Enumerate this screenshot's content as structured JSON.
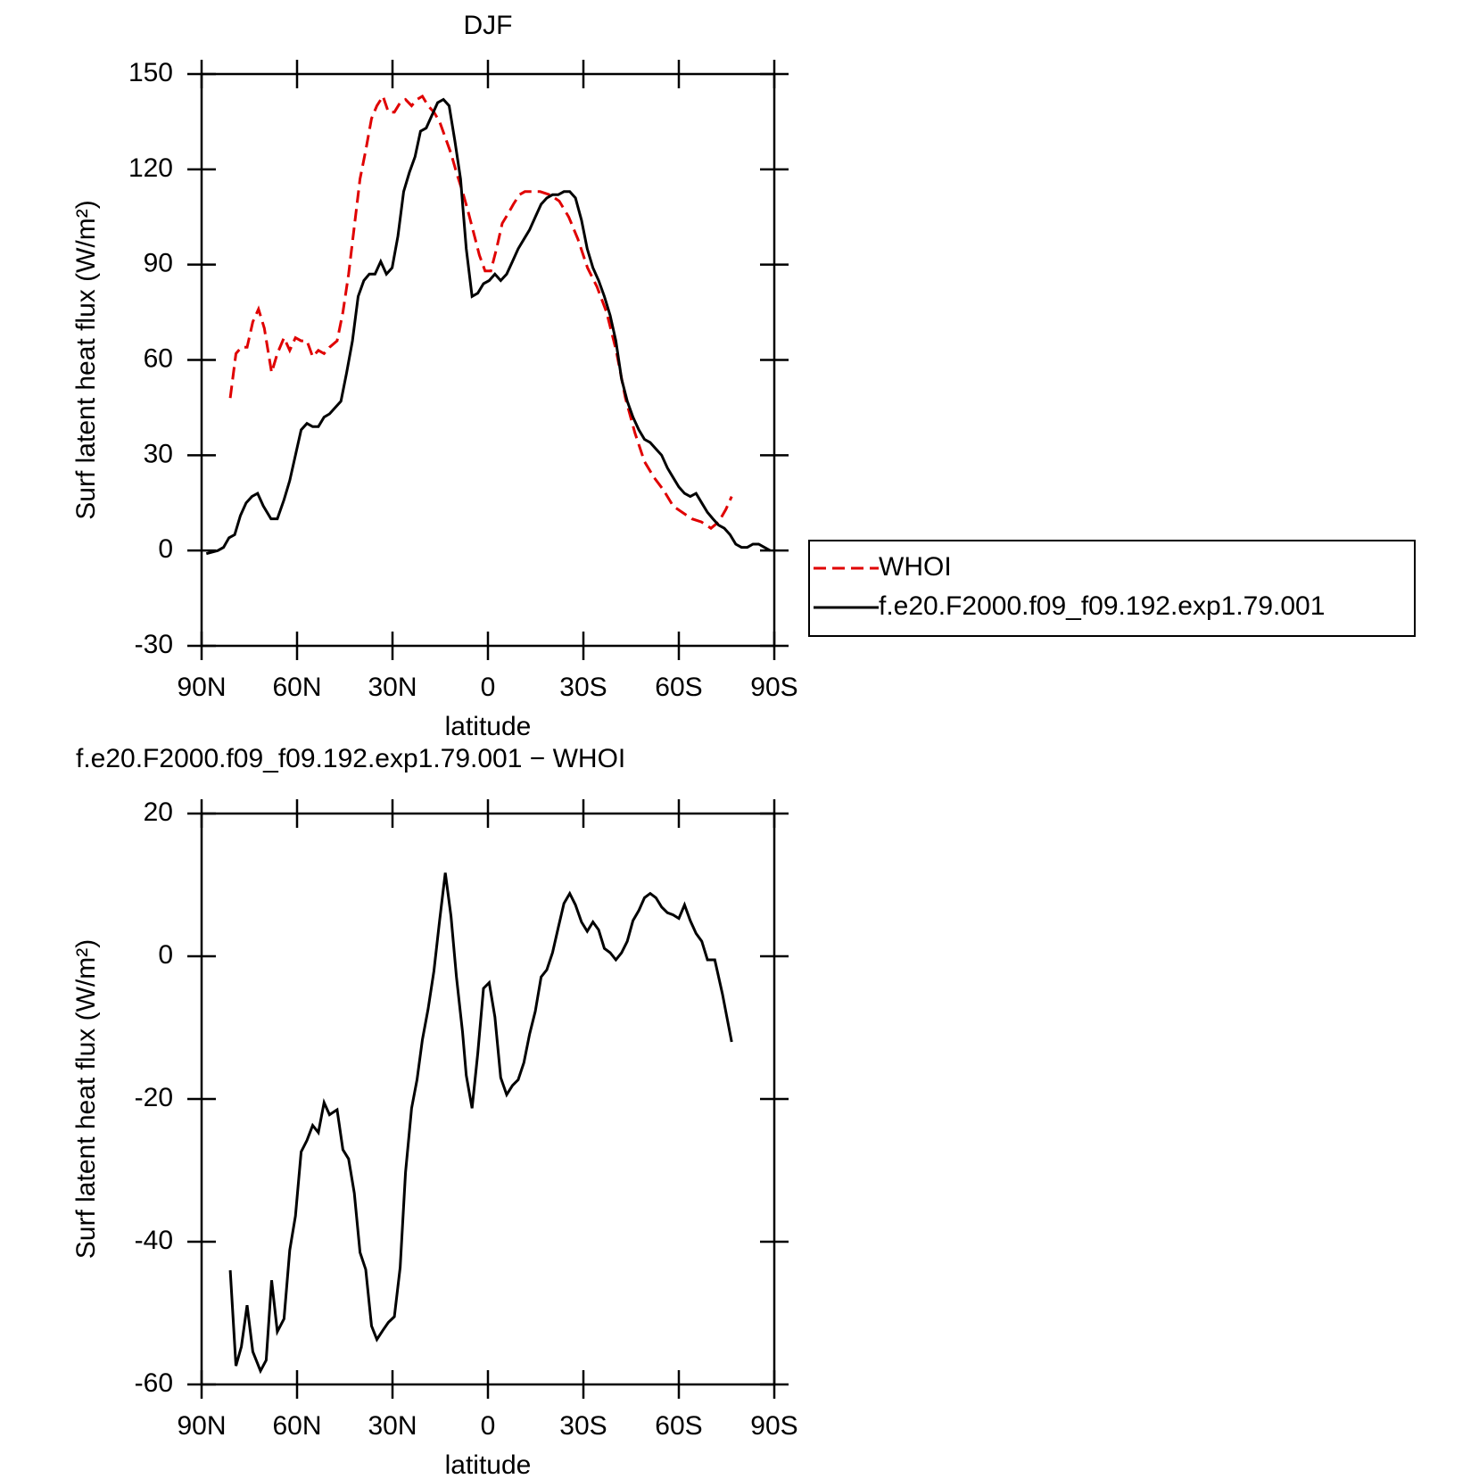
{
  "chart_data": [
    {
      "type": "line",
      "title": "DJF",
      "xlabel": "latitude",
      "ylabel": "Surf latent heat flux (W/m²)",
      "xlim": [
        90,
        -90
      ],
      "xticks": [
        {
          "value": 90,
          "label": "90N"
        },
        {
          "value": 60,
          "label": "60N"
        },
        {
          "value": 30,
          "label": "30N"
        },
        0,
        {
          "value": -30,
          "label": "30S"
        },
        {
          "value": -60,
          "label": "60S"
        },
        {
          "value": -90,
          "label": "90S"
        }
      ],
      "ylim": [
        -30,
        150
      ],
      "yticks": [
        -30,
        0,
        30,
        60,
        90,
        120,
        150
      ],
      "series": [
        {
          "name": "WHOI",
          "color": "#e00000",
          "dash": "dashed",
          "x": [
            81,
            79.2,
            77.5,
            75.7,
            73.9,
            72.1,
            70.3,
            68,
            66.2,
            64.1,
            62.3,
            60.5,
            58.7,
            56.9,
            55.1,
            53.3,
            51.5,
            49.8,
            47.4,
            45.6,
            43.8,
            42,
            40.2,
            38.4,
            36.6,
            34.9,
            33,
            31.3,
            29.4,
            27.6,
            25.9,
            24,
            22.3,
            20.6,
            18.8,
            17,
            15.2,
            13.4,
            11.6,
            9.9,
            8,
            6.3,
            4.5,
            2.7,
            0.9,
            -0.9,
            -2.7,
            -4.5,
            -6.3,
            -8,
            -9.9,
            -11.6,
            -13.4,
            -16.4,
            -19.4,
            -22.4,
            -25.4,
            -28.3,
            -31.3,
            -34.3,
            -37.3,
            -40.3,
            -43.2,
            -46.2,
            -49.2,
            -52.2,
            -55.2,
            -58.2,
            -61.1,
            -64.1,
            -67.1,
            -70.1,
            -72.5,
            -74.8,
            -76.6
          ],
          "values": [
            48,
            62,
            64,
            64,
            72,
            76,
            70,
            56,
            62,
            67,
            63,
            67,
            66,
            66,
            61,
            63,
            62,
            64,
            66,
            75,
            87,
            102,
            117,
            126,
            136,
            140,
            143,
            138,
            138,
            141,
            142,
            140,
            142,
            143,
            140,
            138,
            135,
            130,
            125,
            119,
            113,
            107,
            100,
            93,
            88,
            88,
            95,
            103,
            106,
            109,
            112,
            113,
            113,
            113,
            112,
            110,
            105,
            98,
            89,
            83,
            75,
            63,
            48,
            37,
            28,
            23,
            19,
            14,
            12,
            10,
            9,
            7,
            9,
            13,
            17
          ]
        },
        {
          "name": "f.e20.F2000.f09_f09.192.exp1.79.001",
          "color": "#000000",
          "dash": "solid",
          "x": [
            88.5,
            84.9,
            83.1,
            81.4,
            79.6,
            77.8,
            76,
            74.2,
            72.4,
            70.6,
            68.2,
            66.2,
            64.1,
            62.3,
            60.5,
            58.7,
            56.9,
            55.1,
            53.3,
            51.5,
            49.8,
            48,
            46.2,
            44.4,
            42.6,
            40.8,
            39,
            37.3,
            35.5,
            33.7,
            31.9,
            30.1,
            28.3,
            26.5,
            24.7,
            22.9,
            21.2,
            19.4,
            17.6,
            15.8,
            14,
            12.2,
            10.4,
            8.6,
            6.8,
            5,
            3.2,
            1.4,
            -0.4,
            -2.2,
            -4,
            -5.9,
            -7.7,
            -9.5,
            -11.3,
            -13.1,
            -14.9,
            -16.7,
            -18.5,
            -20.3,
            -22.1,
            -23.9,
            -25.7,
            -27.5,
            -29.4,
            -31.2,
            -33,
            -34.8,
            -36.6,
            -38.4,
            -40.2,
            -42,
            -43.8,
            -45.6,
            -47.4,
            -49.2,
            -51,
            -52.8,
            -54.6,
            -56.4,
            -58.2,
            -60,
            -61.8,
            -63.6,
            -65.4,
            -67.2,
            -69,
            -70.7,
            -72.5,
            -74.3,
            -76.1,
            -77.9,
            -79.7,
            -81.5,
            -83.3,
            -85.1,
            -86.9,
            -88.7
          ],
          "values": [
            -1,
            0,
            1,
            4,
            5,
            11,
            15,
            17,
            18,
            14,
            10,
            10,
            16,
            22,
            30,
            38,
            40,
            39,
            39,
            42,
            43,
            45,
            47,
            56,
            66,
            80,
            85,
            87,
            87,
            91,
            87,
            89,
            99,
            113,
            119,
            124,
            132,
            133,
            137,
            141,
            142,
            140,
            129,
            117,
            95,
            80,
            81,
            84,
            85,
            87,
            85,
            87,
            91,
            95,
            98,
            101,
            105,
            109,
            111,
            112,
            112,
            113,
            113,
            111,
            104,
            95,
            89,
            85,
            80,
            74,
            66,
            54,
            47,
            42,
            38,
            35,
            34,
            32,
            30,
            26,
            23,
            20,
            18,
            17,
            18,
            15,
            12,
            10,
            8,
            7,
            5,
            2,
            1,
            1,
            2,
            2,
            1,
            0
          ]
        }
      ]
    },
    {
      "type": "line",
      "title": "f.e20.F2000.f09_f09.192.exp1.79.001 − WHOI",
      "xlabel": "latitude",
      "ylabel": "Surf latent heat flux (W/m²)",
      "xlim": [
        90,
        -90
      ],
      "xticks": [
        {
          "value": 90,
          "label": "90N"
        },
        {
          "value": 60,
          "label": "60N"
        },
        {
          "value": 30,
          "label": "30N"
        },
        0,
        {
          "value": -30,
          "label": "30S"
        },
        {
          "value": -60,
          "label": "60S"
        },
        {
          "value": -90,
          "label": "90S"
        }
      ],
      "ylim": [
        -60,
        20
      ],
      "yticks": [
        -60,
        -40,
        -20,
        0,
        20
      ],
      "series": [
        {
          "color": "#000000",
          "dash": "solid",
          "x": [
            81,
            79.2,
            77.5,
            75.7,
            73.9,
            71.5,
            69.7,
            68,
            66.2,
            64.1,
            62.3,
            60.5,
            58.7,
            56.9,
            55.1,
            53.3,
            51.5,
            49.8,
            47.4,
            45.6,
            43.8,
            42,
            40.2,
            38.4,
            36.6,
            34.9,
            33,
            31.3,
            29.4,
            27.6,
            25.9,
            24,
            22.3,
            20.6,
            18.8,
            17,
            15.2,
            13.4,
            11.6,
            9.9,
            8,
            6.8,
            5,
            3.2,
            1.4,
            -0.4,
            -2.2,
            -4,
            -5.9,
            -7.7,
            -9.5,
            -11.3,
            -13.1,
            -14.9,
            -16.7,
            -18.5,
            -20.3,
            -22.1,
            -23.9,
            -25.7,
            -27.5,
            -29.4,
            -31.2,
            -33,
            -34.8,
            -36.6,
            -38.4,
            -40.2,
            -42,
            -43.8,
            -45.6,
            -47.4,
            -49.2,
            -51,
            -52.8,
            -54.6,
            -56.4,
            -58.2,
            -60,
            -61.8,
            -63.6,
            -65.4,
            -67.2,
            -69,
            -71.3,
            -73.7,
            -76.6
          ],
          "values": [
            -44,
            -57.4,
            -54.7,
            -48.9,
            -55.4,
            -58.1,
            -56.6,
            -45.4,
            -52.6,
            -50.8,
            -41.2,
            -36.4,
            -27.4,
            -25.8,
            -23.7,
            -24.7,
            -20.5,
            -22.2,
            -21.5,
            -27.1,
            -28.4,
            -33.2,
            -41.5,
            -43.9,
            -51.8,
            -53.7,
            -52.4,
            -51.3,
            -50.5,
            -43.6,
            -30.3,
            -21.3,
            -17.3,
            -11.7,
            -7.4,
            -2.1,
            5,
            11.7,
            5.6,
            -2.9,
            -10.6,
            -16.7,
            -21.3,
            -13.6,
            -4.5,
            -3.7,
            -8.5,
            -17,
            -19.4,
            -18.1,
            -17.3,
            -14.9,
            -10.9,
            -7.7,
            -2.9,
            -1.9,
            0.5,
            4,
            7.4,
            8.8,
            7.2,
            4.8,
            3.5,
            4.8,
            3.7,
            1.1,
            0.5,
            -0.5,
            0.5,
            2.1,
            5,
            6.4,
            8.2,
            8.8,
            8.2,
            6.9,
            6.1,
            5.8,
            5.3,
            7.2,
            5,
            3.2,
            2.1,
            -0.5,
            -0.5,
            -5.3,
            -12
          ]
        }
      ]
    }
  ]
}
